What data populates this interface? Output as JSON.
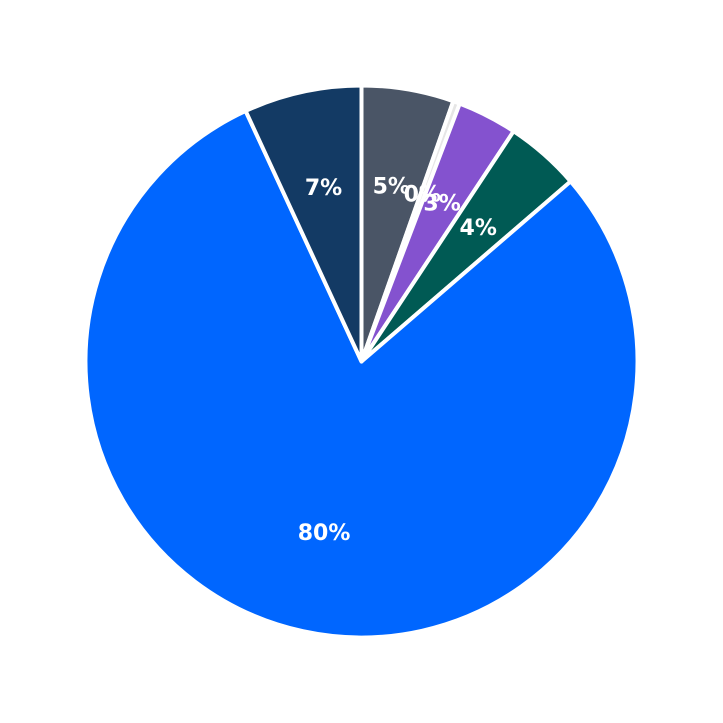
{
  "chart_data": {
    "type": "pie",
    "start_angle_deg": 90,
    "direction": "clockwise",
    "slices": [
      {
        "label": "5%",
        "value": 5.4,
        "color": "#4a5566"
      },
      {
        "label": "0%",
        "value": 0.4,
        "color": "#e6e6e6"
      },
      {
        "label": "3%",
        "value": 3.5,
        "color": "#8452cf"
      },
      {
        "label": "4%",
        "value": 4.4,
        "color": "#005a54"
      },
      {
        "label": "80%",
        "value": 79.5,
        "color": "#0066ff"
      },
      {
        "label": "7%",
        "value": 6.9,
        "color": "#133a64"
      }
    ]
  }
}
